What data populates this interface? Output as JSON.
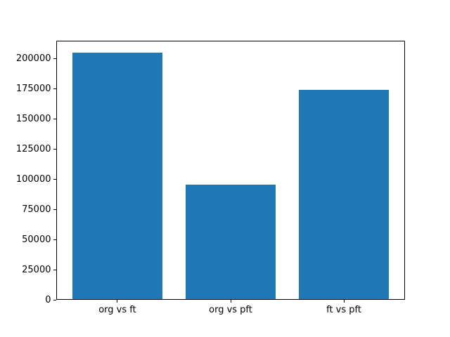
{
  "chart_data": {
    "type": "bar",
    "title": "",
    "xlabel": "",
    "ylabel": "",
    "categories": [
      "org vs ft",
      "org vs pft",
      "ft vs pft"
    ],
    "values": [
      204650,
      95350,
      173800
    ],
    "yticks": [
      0,
      25000,
      50000,
      75000,
      100000,
      125000,
      150000,
      175000,
      200000
    ],
    "ytick_labels": [
      "0",
      "25000",
      "50000",
      "75000",
      "100000",
      "125000",
      "150000",
      "175000",
      "200000"
    ],
    "ylim": [
      0,
      214880
    ],
    "xlim": [
      -0.54,
      2.54
    ],
    "bar_width": 0.8,
    "bar_color": "#1f77b4",
    "axis_color": "#000000",
    "background_color": "#ffffff",
    "grid": false,
    "legend": null
  }
}
